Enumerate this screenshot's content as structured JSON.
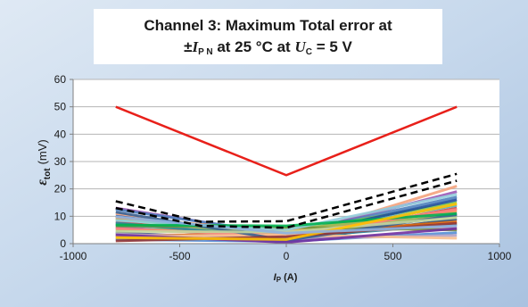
{
  "chart_data": {
    "type": "line",
    "title_line1": "Channel 3: Maximum Total error at",
    "title_line2": {
      "prefix": "±",
      "var": "I",
      "var_sub": "P N",
      "middle": " at 25 °C at ",
      "var2": "U",
      "var2_sub": "C",
      "suffix": " = 5 V"
    },
    "ylabel": {
      "symbol": "ε",
      "sub": "tot",
      "unit": "(mV)"
    },
    "xlabel": {
      "var": "I",
      "sub": "P",
      "unit": " (A)"
    },
    "xlim": [
      -1000,
      1000
    ],
    "ylim": [
      0,
      60
    ],
    "x_ticks": [
      -1000,
      -500,
      0,
      500,
      1000
    ],
    "x_tick_labels": [
      "-1000",
      "-500",
      "0",
      "500",
      "1000"
    ],
    "y_ticks": [
      0,
      10,
      20,
      30,
      40,
      50,
      60
    ],
    "y_tick_labels": [
      "0",
      "10",
      "20",
      "30",
      "40",
      "50",
      "60"
    ],
    "grid": {
      "horizontal": true,
      "vertical": false
    },
    "limit_line": {
      "color": "#e8201a",
      "x": [
        -800,
        0,
        800
      ],
      "y": [
        50,
        25,
        50
      ]
    },
    "max_lines": [
      {
        "color": "#000000",
        "x": [
          -800,
          -400,
          0,
          800
        ],
        "y": [
          15.5,
          8,
          8.2,
          25.5
        ]
      },
      {
        "color": "#000000",
        "x": [
          -800,
          -400,
          0,
          800
        ],
        "y": [
          13,
          6.5,
          5.8,
          23
        ]
      }
    ],
    "sample_lines": [
      {
        "color": "#f4a27c",
        "x": [
          -800,
          0,
          800
        ],
        "y": [
          11,
          2,
          21
        ]
      },
      {
        "color": "#9b59b6",
        "x": [
          -800,
          0,
          800
        ],
        "y": [
          13,
          3,
          19
        ]
      },
      {
        "color": "#4f81bd",
        "x": [
          -800,
          0,
          800
        ],
        "y": [
          12.5,
          3.5,
          17
        ]
      },
      {
        "color": "#7cc44d",
        "x": [
          -800,
          0,
          800
        ],
        "y": [
          9,
          4,
          15
        ]
      },
      {
        "color": "#1f4e9c",
        "x": [
          -800,
          0,
          800
        ],
        "y": [
          10,
          2.5,
          16
        ]
      },
      {
        "color": "#c0504d",
        "x": [
          -800,
          0,
          800
        ],
        "y": [
          8,
          1.5,
          13
        ]
      },
      {
        "color": "#4bacc6",
        "x": [
          -800,
          0,
          800
        ],
        "y": [
          7,
          3,
          14
        ]
      },
      {
        "color": "#f79646",
        "x": [
          -800,
          0,
          800
        ],
        "y": [
          9.5,
          4.5,
          12
        ]
      },
      {
        "color": "#8064a2",
        "x": [
          -800,
          0,
          800
        ],
        "y": [
          6,
          2,
          11
        ]
      },
      {
        "color": "#9bbb59",
        "x": [
          -800,
          0,
          800
        ],
        "y": [
          5,
          5.5,
          10
        ]
      },
      {
        "color": "#2c4d75",
        "x": [
          -800,
          0,
          800
        ],
        "y": [
          4,
          1,
          9
        ]
      },
      {
        "color": "#e46c0a",
        "x": [
          -800,
          0,
          800
        ],
        "y": [
          3,
          3.5,
          8
        ]
      },
      {
        "color": "#31859c",
        "x": [
          -800,
          0,
          800
        ],
        "y": [
          7.5,
          2.2,
          7
        ]
      },
      {
        "color": "#d99694",
        "x": [
          -800,
          0,
          800
        ],
        "y": [
          2,
          4,
          6
        ]
      },
      {
        "color": "#77933c",
        "x": [
          -800,
          0,
          800
        ],
        "y": [
          6.5,
          6,
          5
        ]
      },
      {
        "color": "#558ed5",
        "x": [
          -800,
          0,
          800
        ],
        "y": [
          1.5,
          0.8,
          4
        ]
      },
      {
        "color": "#ff7f7f",
        "x": [
          -800,
          0,
          800
        ],
        "y": [
          5.5,
          2.8,
          12.5
        ]
      },
      {
        "color": "#b3a2c7",
        "x": [
          -800,
          0,
          800
        ],
        "y": [
          3.5,
          1.8,
          3
        ]
      },
      {
        "color": "#92cddc",
        "x": [
          -800,
          0,
          800
        ],
        "y": [
          8.5,
          5,
          18
        ]
      },
      {
        "color": "#fac090",
        "x": [
          -800,
          0,
          800
        ],
        "y": [
          2.5,
          3.2,
          2
        ]
      },
      {
        "color": "#376092",
        "x": [
          -800,
          0,
          800
        ],
        "y": [
          11.5,
          1.2,
          10.5
        ]
      },
      {
        "color": "#c3d69b",
        "x": [
          -800,
          0,
          800
        ],
        "y": [
          4.5,
          4.2,
          9.5
        ]
      },
      {
        "color": "#953735",
        "x": [
          -800,
          0,
          800
        ],
        "y": [
          1,
          2.5,
          7.5
        ]
      },
      {
        "color": "#00b050",
        "x": [
          -800,
          0,
          800
        ],
        "y": [
          6.8,
          6.5,
          11
        ]
      },
      {
        "color": "#7030a0",
        "x": [
          -800,
          0,
          800
        ],
        "y": [
          3.2,
          0.5,
          5.5
        ]
      },
      {
        "color": "#ffc000",
        "x": [
          -800,
          0,
          800
        ],
        "y": [
          2.2,
          1.5,
          14.5
        ]
      },
      {
        "color": "#8db3e2",
        "x": [
          -800,
          0,
          800
        ],
        "y": [
          9.8,
          3.8,
          6.5
        ]
      }
    ]
  }
}
